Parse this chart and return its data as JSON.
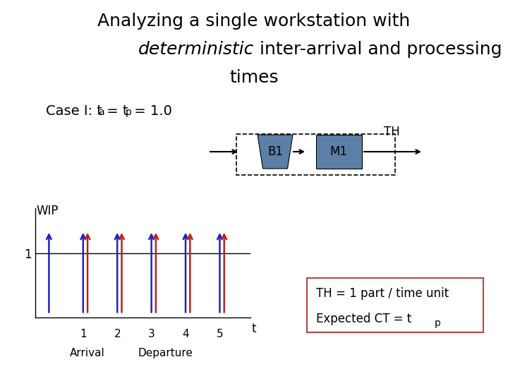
{
  "title_line1": "Analyzing a single workstation with",
  "title_line2_italic": "deterministic",
  "title_line2_normal": " inter-arrival and processing",
  "title_line3": "times",
  "case_prefix": "Case I: t",
  "case_sub_a": "a",
  "case_mid": " = t",
  "case_sub_p": "p",
  "case_suffix": " = 1.0",
  "wip_label": "WIP",
  "t_label": "t",
  "arrivals": [
    0,
    1,
    2,
    3,
    4,
    5
  ],
  "departures": [
    1,
    2,
    3,
    4,
    5
  ],
  "box_color": "#5b7fa6",
  "arrow_blue": "#2222bb",
  "arrow_red": "#bb2222",
  "annotation_border_color": "#bb4444",
  "th_text": "TH = 1 part / time unit",
  "ct_text_main": "Expected CT = t",
  "ct_sub": "p",
  "b1_label": "B1",
  "m1_label": "M1",
  "th_label": "TH",
  "bg_color": "#ffffff",
  "title_fontsize": 18,
  "case_fontsize": 14,
  "ann_fontsize": 12
}
